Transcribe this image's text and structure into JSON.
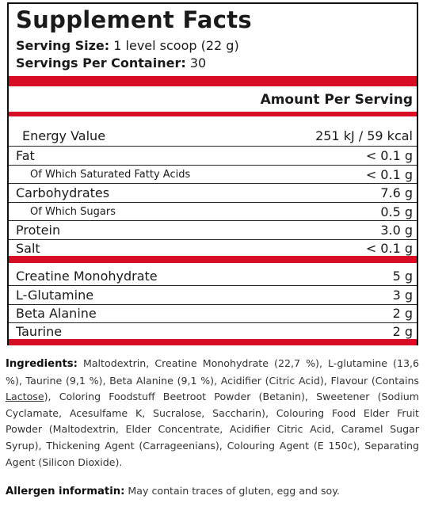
{
  "title": "Supplement Facts",
  "serving_size_label": "Serving Size:",
  "serving_size_value": "1 level scoop (22 g)",
  "servings_per_container_label": "Servings Per Container:",
  "servings_per_container_value": "30",
  "amount_per_serving": "Amount Per Serving",
  "accent_color": "#d80c24",
  "nutrition_rows": [
    {
      "label": "Energy Value",
      "value": "251 kJ / 59 kcal"
    },
    {
      "label": "Fat",
      "value": "< 0.1 g"
    },
    {
      "label": "Of Which Saturated Fatty Acids",
      "value": "< 0.1 g"
    },
    {
      "label": "Carbohydrates",
      "value": "7.6 g"
    },
    {
      "label": "Of Which Sugars",
      "value": "0.5 g"
    },
    {
      "label": "Protein",
      "value": "3.0 g"
    },
    {
      "label": "Salt",
      "value": "< 0.1 g"
    }
  ],
  "active_rows": [
    {
      "label": "Creatine Monohydrate",
      "value": "5 g"
    },
    {
      "label": "L-Glutamine",
      "value": "3 g"
    },
    {
      "label": "Beta Alanine",
      "value": "2 g"
    },
    {
      "label": "Taurine",
      "value": "2 g"
    }
  ],
  "ingredients_label": "Ingredients:",
  "ingredients_part1": " Maltodextrin, Creatine Monohydrate (22,7 %), L-glutamine (13,6 %), Taurine (9,1 %), Beta Alanine (9,1 %), Acidifier (Citric Acid), Flavour (Contains ",
  "ingredients_lactose": "Lactose",
  "ingredients_part2": "), Coloring Foodstuff Beetroot Powder (Betanin), Sweetener (Sodium Cyclamate, Acesulfame K, Sucralose, Saccharin), Colouring Food Elder Fruit Powder (Maltodextrin, Elder Concentrate, Acidifier Citric Acid, Caramel Sugar Syrup), Thickening Agent (Carrageenians), Colouring Agent (E 150c), Separating Agent (Silicon Dioxide).",
  "allergen_label": "Allergen informatin:",
  "allergen_text": " May contain traces of gluten, egg and soy."
}
